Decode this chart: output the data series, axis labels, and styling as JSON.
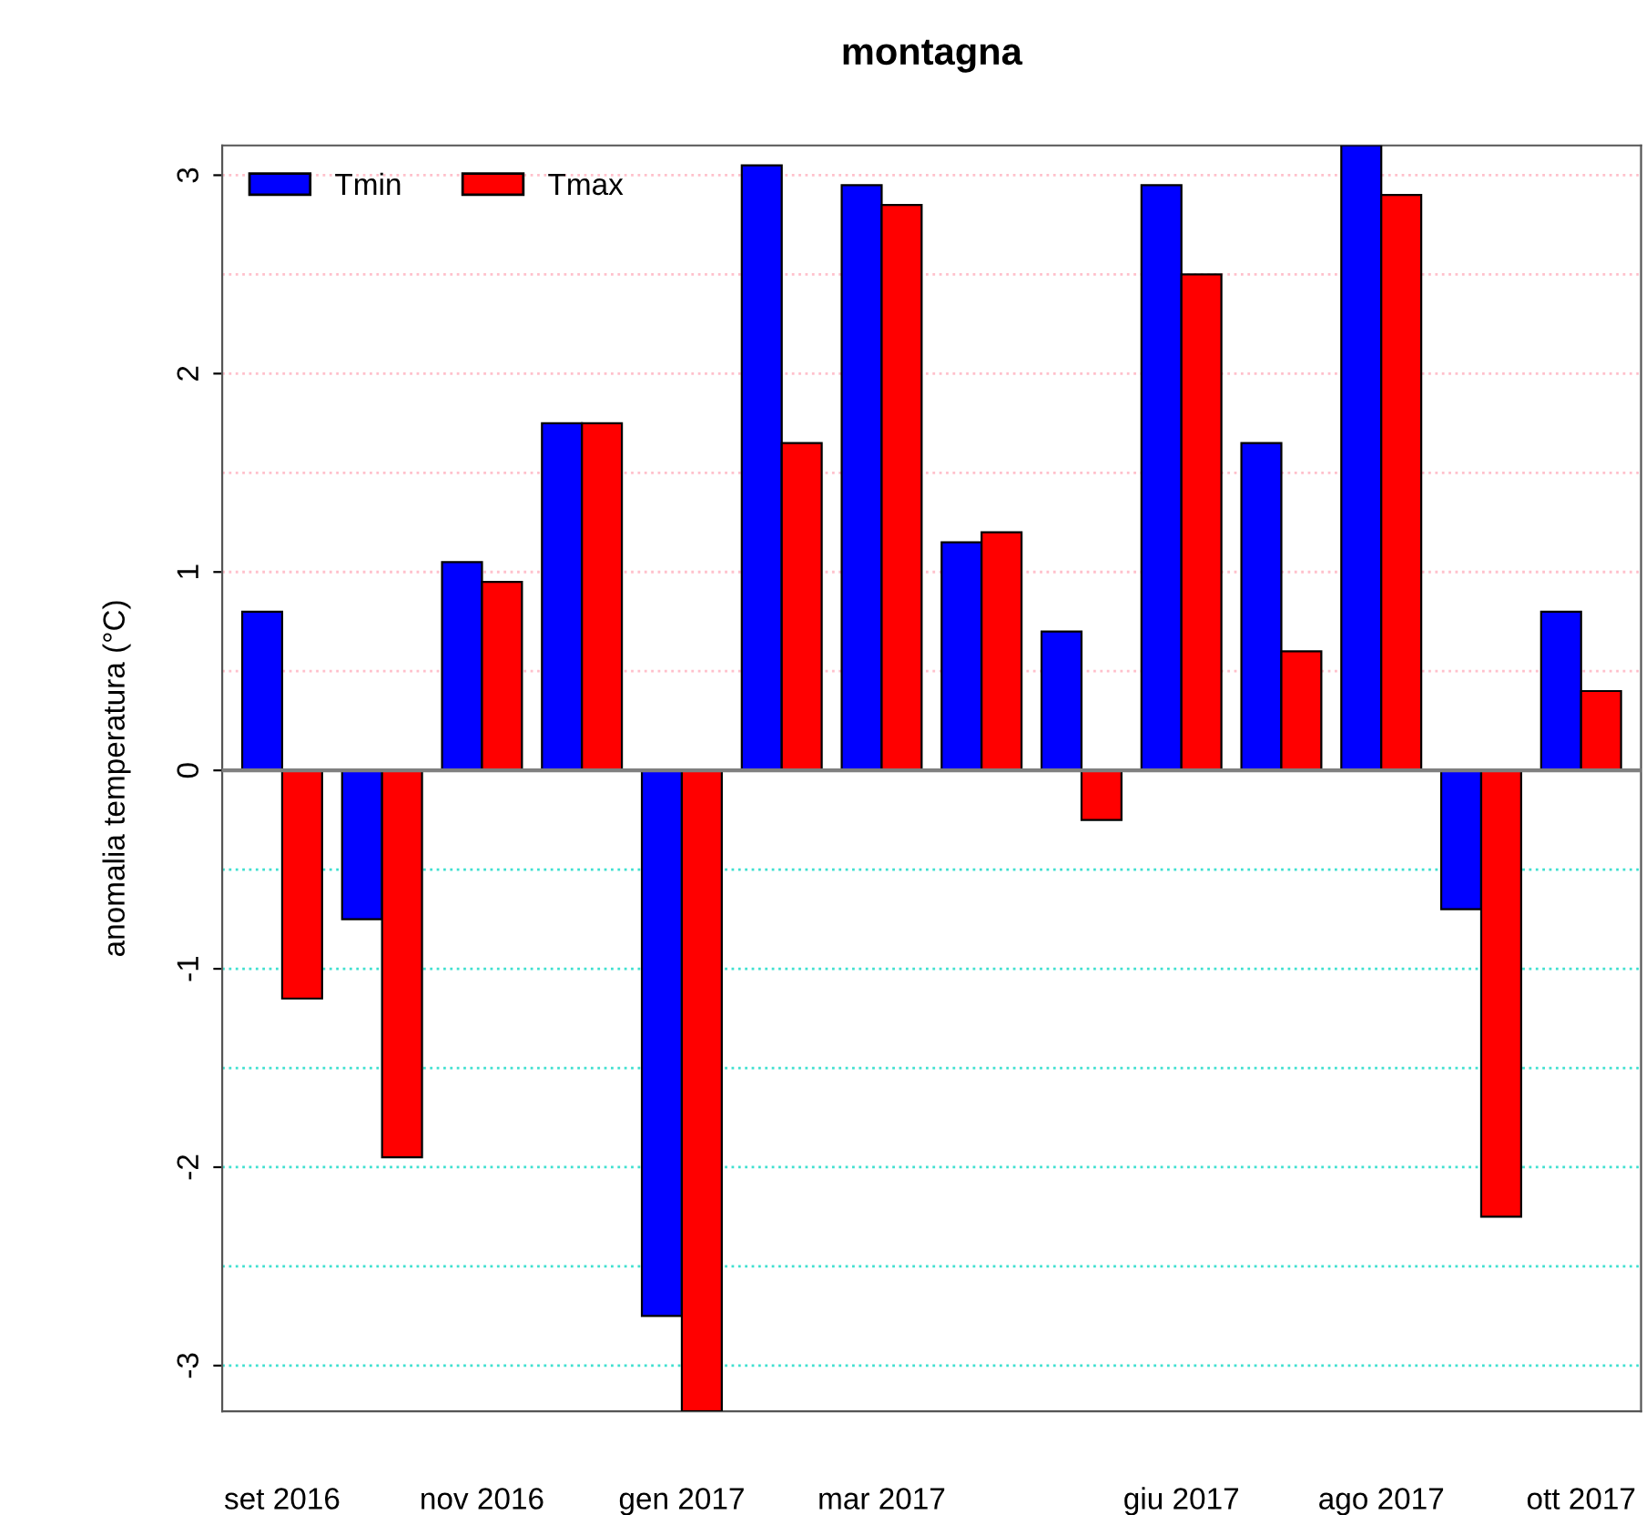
{
  "chart_data": {
    "type": "bar",
    "title": "montagna",
    "ylabel": "anomalia temperatura (°C)",
    "categories": [
      "set 2016",
      null,
      "nov 2016",
      null,
      "gen 2017",
      null,
      "mar 2017",
      null,
      null,
      "giu 2017",
      null,
      "ago 2017",
      null,
      "ott 2017"
    ],
    "series": [
      {
        "name": "Tmin",
        "color": "#0000ff",
        "values": [
          0.8,
          -0.75,
          1.05,
          1.75,
          -2.75,
          3.05,
          2.95,
          1.15,
          0.7,
          2.95,
          1.65,
          3.15,
          -0.7,
          0.8
        ]
      },
      {
        "name": "Tmax",
        "color": "#ff0000",
        "values": [
          -1.15,
          -1.95,
          0.95,
          1.75,
          -3.23,
          1.65,
          2.85,
          1.2,
          -0.25,
          2.5,
          0.6,
          2.9,
          -2.25,
          0.4
        ]
      }
    ],
    "ylim": [
      -3.23,
      3.15
    ],
    "yticks": [
      -3,
      -2,
      -1,
      0,
      1,
      2,
      3
    ],
    "ref_lines": [
      {
        "axis": "y",
        "value": 0.5,
        "color": "#ffc0cb",
        "line_style": "dotted"
      },
      {
        "axis": "y",
        "value": 1,
        "color": "#ffc0cb",
        "line_style": "dotted"
      },
      {
        "axis": "y",
        "value": 1.5,
        "color": "#ffc0cb",
        "line_style": "dotted"
      },
      {
        "axis": "y",
        "value": 2,
        "color": "#ffc0cb",
        "line_style": "dotted"
      },
      {
        "axis": "y",
        "value": 2.5,
        "color": "#ffc0cb",
        "line_style": "dotted"
      },
      {
        "axis": "y",
        "value": 3,
        "color": "#ffc0cb",
        "line_style": "dotted"
      },
      {
        "axis": "y",
        "value": -0.5,
        "color": "#40e0d0",
        "line_style": "dotted"
      },
      {
        "axis": "y",
        "value": -1,
        "color": "#40e0d0",
        "line_style": "dotted"
      },
      {
        "axis": "y",
        "value": -1.5,
        "color": "#40e0d0",
        "line_style": "dotted"
      },
      {
        "axis": "y",
        "value": -2,
        "color": "#40e0d0",
        "line_style": "dotted"
      },
      {
        "axis": "y",
        "value": -2.5,
        "color": "#40e0d0",
        "line_style": "dotted"
      },
      {
        "axis": "y",
        "value": -3,
        "color": "#40e0d0",
        "line_style": "dotted"
      },
      {
        "axis": "y",
        "value": 0,
        "color": "#808080",
        "line_style": "solid"
      }
    ],
    "legend": "top left"
  }
}
